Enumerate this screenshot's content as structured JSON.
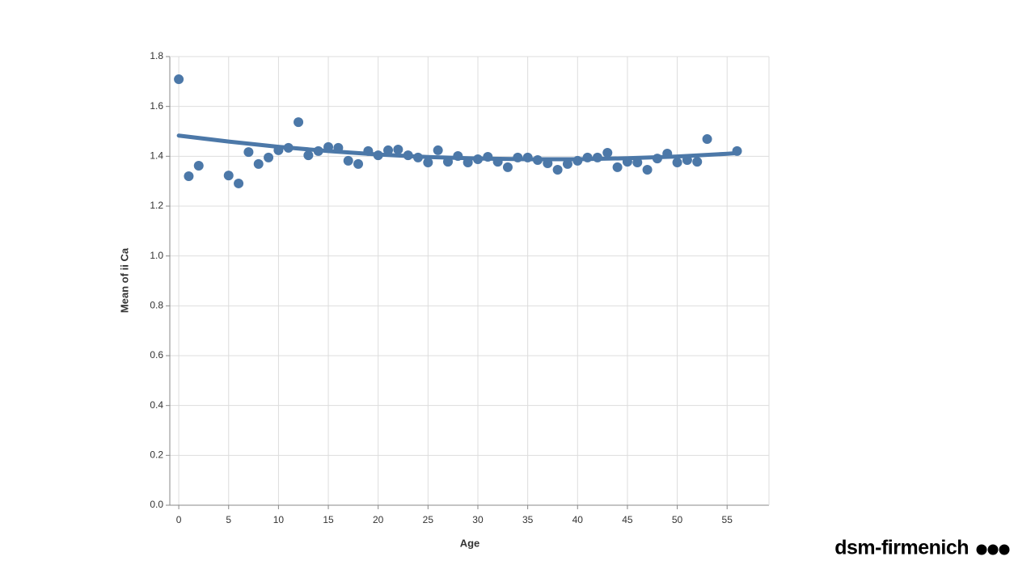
{
  "chart_data": {
    "type": "scatter",
    "x_label": "Age",
    "y_label": "Mean of ii Ca",
    "x": [
      0,
      1,
      2,
      5,
      6,
      7,
      8,
      9,
      10,
      11,
      12,
      13,
      14,
      15,
      16,
      17,
      18,
      19,
      20,
      21,
      22,
      23,
      24,
      25,
      26,
      27,
      28,
      29,
      30,
      31,
      32,
      33,
      34,
      35,
      36,
      37,
      38,
      39,
      40,
      41,
      42,
      43,
      44,
      45,
      46,
      47,
      48,
      49,
      50,
      51,
      52,
      53,
      56
    ],
    "values": [
      1.709,
      1.32,
      1.362,
      1.323,
      1.291,
      1.417,
      1.369,
      1.395,
      1.424,
      1.434,
      1.537,
      1.404,
      1.421,
      1.437,
      1.434,
      1.382,
      1.369,
      1.421,
      1.404,
      1.424,
      1.427,
      1.404,
      1.395,
      1.375,
      1.424,
      1.378,
      1.401,
      1.375,
      1.388,
      1.398,
      1.378,
      1.356,
      1.395,
      1.395,
      1.385,
      1.372,
      1.346,
      1.369,
      1.382,
      1.395,
      1.395,
      1.414,
      1.356,
      1.378,
      1.375,
      1.346,
      1.391,
      1.411,
      1.375,
      1.385,
      1.378,
      1.469,
      1.421
    ],
    "trend": {
      "x": [
        0,
        5,
        10,
        15,
        20,
        25,
        30,
        35,
        40,
        45,
        50,
        55,
        56
      ],
      "values": [
        1.483,
        1.459,
        1.438,
        1.421,
        1.407,
        1.397,
        1.391,
        1.388,
        1.388,
        1.392,
        1.399,
        1.41,
        1.413
      ]
    },
    "color": "#4c78a8",
    "xlim": [
      -0.9,
      59.2
    ],
    "ylim": [
      0,
      1.8
    ],
    "xticks": [
      0,
      5,
      10,
      15,
      20,
      25,
      30,
      35,
      40,
      45,
      50,
      55
    ],
    "yticks": [
      {
        "value": 0,
        "label": "0.0"
      },
      {
        "value": 0.2,
        "label": "0.2"
      },
      {
        "value": 0.4,
        "label": "0.4"
      },
      {
        "value": 0.6,
        "label": "0.6"
      },
      {
        "value": 0.8,
        "label": "0.8"
      },
      {
        "value": 1,
        "label": "1.0"
      },
      {
        "value": 1.2,
        "label": "1.2"
      },
      {
        "value": 1.4,
        "label": "1.4"
      },
      {
        "value": 1.6,
        "label": "1.6"
      },
      {
        "value": 1.8,
        "label": "1.8"
      }
    ],
    "grid": true
  },
  "logo": "dsm-firmenich"
}
